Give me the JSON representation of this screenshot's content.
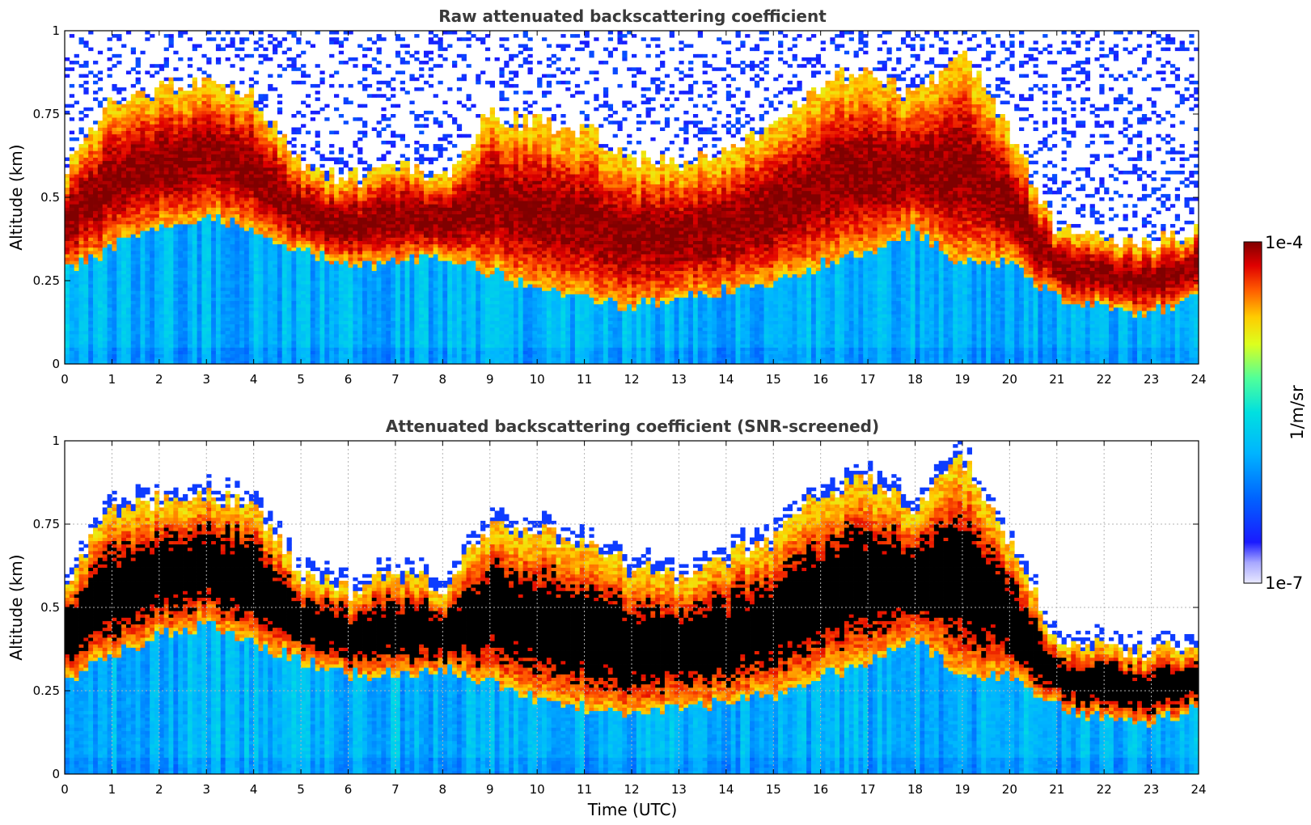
{
  "chart_data": [
    {
      "type": "heatmap",
      "title": "Raw attenuated backscattering coefficient",
      "xlabel": "",
      "ylabel": "Altitude (km)",
      "xlim": [
        0,
        24
      ],
      "ylim": [
        0,
        1
      ],
      "x_ticks": [
        "0",
        "1",
        "2",
        "3",
        "4",
        "5",
        "6",
        "7",
        "8",
        "9",
        "10",
        "11",
        "12",
        "13",
        "14",
        "15",
        "16",
        "17",
        "18",
        "19",
        "20",
        "21",
        "22",
        "23",
        "24"
      ],
      "y_ticks": [
        "0",
        "0.25",
        "0.5",
        "0.75",
        "1"
      ],
      "grid": false,
      "screened": false,
      "layer_top_km": [
        0.58,
        0.8,
        0.82,
        0.85,
        0.8,
        0.6,
        0.55,
        0.6,
        0.56,
        0.75,
        0.72,
        0.7,
        0.62,
        0.6,
        0.65,
        0.7,
        0.85,
        0.88,
        0.8,
        0.95,
        0.7,
        0.4,
        0.38,
        0.36,
        0.4
      ],
      "layer_bottom_km": [
        0.28,
        0.35,
        0.42,
        0.45,
        0.4,
        0.34,
        0.3,
        0.3,
        0.32,
        0.28,
        0.22,
        0.2,
        0.17,
        0.2,
        0.22,
        0.24,
        0.3,
        0.33,
        0.4,
        0.3,
        0.3,
        0.2,
        0.17,
        0.15,
        0.2
      ]
    },
    {
      "type": "heatmap",
      "title": "Attenuated backscattering coefficient (SNR-screened)",
      "xlabel": "Time (UTC)",
      "ylabel": "Altitude (km)",
      "xlim": [
        0,
        24
      ],
      "ylim": [
        0,
        1
      ],
      "x_ticks": [
        "0",
        "1",
        "2",
        "3",
        "4",
        "5",
        "6",
        "7",
        "8",
        "9",
        "10",
        "11",
        "12",
        "13",
        "14",
        "15",
        "16",
        "17",
        "18",
        "19",
        "20",
        "21",
        "22",
        "23",
        "24"
      ],
      "y_ticks": [
        "0",
        "0.25",
        "0.5",
        "0.75",
        "1"
      ],
      "grid": true,
      "screened": true,
      "layer_top_km": [
        0.58,
        0.8,
        0.82,
        0.85,
        0.8,
        0.6,
        0.55,
        0.6,
        0.56,
        0.75,
        0.72,
        0.7,
        0.62,
        0.6,
        0.65,
        0.7,
        0.85,
        0.88,
        0.8,
        0.95,
        0.7,
        0.4,
        0.38,
        0.36,
        0.4
      ],
      "layer_bottom_km": [
        0.28,
        0.35,
        0.42,
        0.45,
        0.4,
        0.34,
        0.3,
        0.3,
        0.32,
        0.28,
        0.22,
        0.2,
        0.17,
        0.2,
        0.22,
        0.24,
        0.3,
        0.33,
        0.4,
        0.3,
        0.3,
        0.2,
        0.17,
        0.15,
        0.2
      ]
    }
  ],
  "colorbar": {
    "label": "1/m/sr",
    "max_label": "1e-4",
    "min_label": "1e-7",
    "scale": "log",
    "range": [
      1e-07,
      0.0001
    ]
  }
}
